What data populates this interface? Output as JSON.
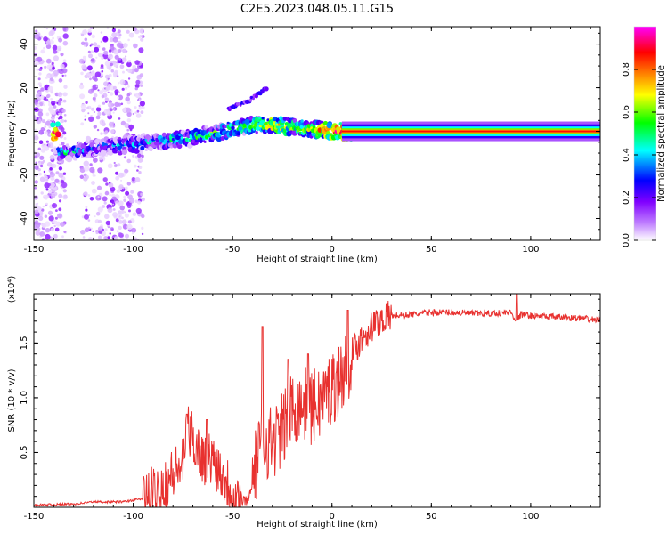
{
  "figure": {
    "title": "C2E5.2023.048.05.11.G15"
  },
  "chart_data": [
    {
      "type": "heatmap",
      "title": "C2E5.2023.048.05.11.G15",
      "xlabel": "Height of straight line (km)",
      "ylabel": "Frequency (Hz)",
      "xlim": [
        -150,
        135
      ],
      "ylim": [
        -50,
        48
      ],
      "xticks": [
        -150,
        -100,
        -50,
        0,
        50,
        100
      ],
      "xticklabels": [
        "-150",
        "-100",
        "-50",
        "0",
        "50",
        "100"
      ],
      "yticks": [
        -40,
        -20,
        0,
        20,
        40
      ],
      "yticklabels": [
        "-40",
        "-20",
        "0",
        "20",
        "40"
      ],
      "grid": false,
      "colorbar": {
        "label": "Normalized spectral amplitude",
        "range": [
          0,
          1
        ],
        "ticks": [
          0.0,
          0.2,
          0.4,
          0.6,
          0.8
        ],
        "ticklabels": [
          "0.0",
          "0.2",
          "0.4",
          "0.6",
          "0.8"
        ],
        "colors": [
          "#ffffff",
          "#c080ff",
          "#8000ff",
          "#0000ff",
          "#00ffff",
          "#00ff00",
          "#ffff00",
          "#ff8000",
          "#ff0000",
          "#ff00ff"
        ]
      },
      "features": {
        "main_trace": [
          {
            "x": -138,
            "y": -10,
            "a": 0.4
          },
          {
            "x": -128,
            "y": -9,
            "a": 0.35
          },
          {
            "x": -115,
            "y": -7,
            "a": 0.3
          },
          {
            "x": -100,
            "y": -6,
            "a": 0.35
          },
          {
            "x": -90,
            "y": -5,
            "a": 0.4
          },
          {
            "x": -80,
            "y": -4,
            "a": 0.45
          },
          {
            "x": -70,
            "y": -3,
            "a": 0.45
          },
          {
            "x": -60,
            "y": -1,
            "a": 0.5
          },
          {
            "x": -50,
            "y": 1,
            "a": 0.5
          },
          {
            "x": -40,
            "y": 3,
            "a": 0.55
          },
          {
            "x": -30,
            "y": 3,
            "a": 0.7
          },
          {
            "x": -20,
            "y": 2,
            "a": 0.6
          },
          {
            "x": -10,
            "y": 1,
            "a": 0.6
          },
          {
            "x": 0,
            "y": 0,
            "a": 0.8
          },
          {
            "x": 10,
            "y": 0,
            "a": 0.9
          },
          {
            "x": 135,
            "y": 0,
            "a": 0.9
          }
        ],
        "secondary_trace": [
          {
            "x": -52,
            "y": 10
          },
          {
            "x": -40,
            "y": 15
          },
          {
            "x": -33,
            "y": 20
          }
        ]
      }
    },
    {
      "type": "line",
      "xlabel": "Height of straight line (km)",
      "ylabel": "SNR (10 * v/v)",
      "y_multiplier_label": "(x10⁴)",
      "xlim": [
        -150,
        135
      ],
      "ylim": [
        0,
        1.95
      ],
      "xticks": [
        -150,
        -100,
        -50,
        0,
        50,
        100
      ],
      "xticklabels": [
        "-150",
        "-100",
        "-50",
        "0",
        "50",
        "100"
      ],
      "yticks": [
        0.5,
        1.0,
        1.5
      ],
      "yticklabels": [
        "0.5",
        "1.0",
        "1.5"
      ],
      "grid": false,
      "line_color": "#e8312f",
      "x": [
        -150,
        -130,
        -120,
        -105,
        -95,
        -88,
        -80,
        -75,
        -72,
        -68,
        -65,
        -60,
        -55,
        -50,
        -45,
        -42,
        -38,
        -35,
        -30,
        -25,
        -20,
        -15,
        -10,
        -5,
        0,
        5,
        10,
        15,
        20,
        25,
        30,
        40,
        50,
        60,
        70,
        80,
        90,
        93,
        95,
        100,
        110,
        120,
        135
      ],
      "y": [
        0.02,
        0.03,
        0.05,
        0.05,
        0.08,
        0.15,
        0.3,
        0.4,
        0.7,
        0.55,
        0.45,
        0.45,
        0.3,
        0.15,
        0.05,
        0.08,
        0.4,
        0.6,
        0.6,
        0.7,
        0.9,
        0.95,
        0.9,
        1.0,
        1.1,
        1.2,
        1.4,
        1.55,
        1.65,
        1.72,
        1.75,
        1.76,
        1.78,
        1.78,
        1.77,
        1.77,
        1.78,
        1.7,
        1.76,
        1.75,
        1.74,
        1.73,
        1.71
      ],
      "spikes": [
        {
          "x": -73,
          "y": 0.85
        },
        {
          "x": -63,
          "y": 0.8
        },
        {
          "x": -35,
          "y": 1.65
        },
        {
          "x": -22,
          "y": 1.35
        },
        {
          "x": -12,
          "y": 1.4
        },
        {
          "x": 8,
          "y": 1.8
        },
        {
          "x": 93,
          "y": 1.95
        }
      ]
    }
  ]
}
